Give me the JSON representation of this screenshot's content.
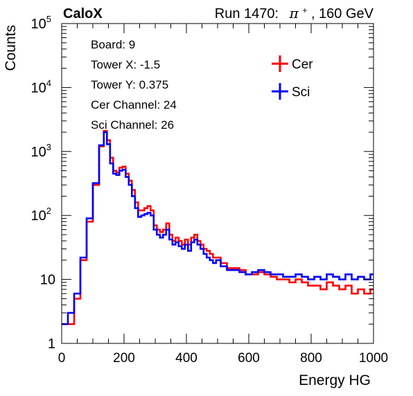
{
  "header": {
    "brand": "CaloX",
    "run_text": "Run 1470:",
    "beam_particle": "π",
    "beam_charge": "+",
    "beam_energy": ", 160 GeV"
  },
  "info_box": {
    "lines": [
      "Board: 9",
      "Tower X: -1.5",
      "Tower Y: 0.375",
      "Cer Channel: 24",
      "Sci Channel: 26"
    ]
  },
  "colors": {
    "cer": "#ff0000",
    "sci": "#0000ff",
    "frame": "#000000"
  },
  "chart_data": {
    "type": "line",
    "title": "",
    "xlabel": "Energy HG",
    "ylabel": "Counts",
    "xlim": [
      0,
      1000
    ],
    "ylim": [
      1,
      100000
    ],
    "yscale": "log",
    "drawstyle": "steps",
    "x_ticks": [
      0,
      200,
      400,
      600,
      800,
      1000
    ],
    "x_tick_labels": [
      "0",
      "200",
      "400",
      "600",
      "800",
      "1000"
    ],
    "y_ticks": [
      1,
      10,
      100,
      1000,
      10000,
      100000
    ],
    "y_tick_labels": [
      {
        "base": "1",
        "exp": ""
      },
      {
        "base": "10",
        "exp": ""
      },
      {
        "base": "10",
        "exp": "2"
      },
      {
        "base": "10",
        "exp": "3"
      },
      {
        "base": "10",
        "exp": "4"
      },
      {
        "base": "10",
        "exp": "5"
      }
    ],
    "legend_position": "top-right",
    "grid": false,
    "series": [
      {
        "name": "Cer",
        "color": "#ff0000",
        "x": [
          10,
          30,
          50,
          70,
          90,
          110,
          130,
          140,
          150,
          160,
          170,
          180,
          190,
          200,
          210,
          220,
          230,
          240,
          250,
          260,
          270,
          280,
          290,
          300,
          310,
          320,
          330,
          340,
          350,
          360,
          370,
          380,
          390,
          400,
          410,
          420,
          430,
          440,
          450,
          460,
          470,
          480,
          490,
          500,
          520,
          540,
          560,
          580,
          600,
          620,
          640,
          660,
          680,
          700,
          720,
          740,
          760,
          780,
          800,
          820,
          840,
          860,
          880,
          900,
          920,
          940,
          960,
          980,
          1000
        ],
        "y": [
          2,
          2,
          5,
          20,
          80,
          300,
          1200,
          2100,
          1500,
          800,
          500,
          470,
          560,
          580,
          450,
          350,
          250,
          160,
          120,
          120,
          130,
          140,
          120,
          70,
          60,
          55,
          60,
          75,
          50,
          40,
          45,
          40,
          35,
          42,
          35,
          45,
          50,
          40,
          35,
          30,
          28,
          25,
          22,
          22,
          18,
          15,
          15,
          14,
          12,
          12,
          13,
          12,
          11,
          10,
          10,
          9,
          10,
          9,
          8,
          8,
          7,
          9,
          8,
          7,
          8,
          6,
          7,
          6,
          7
        ]
      },
      {
        "name": "Sci",
        "color": "#0000ff",
        "x": [
          10,
          30,
          50,
          70,
          90,
          110,
          130,
          140,
          150,
          160,
          170,
          180,
          190,
          200,
          210,
          220,
          230,
          240,
          250,
          260,
          270,
          280,
          290,
          300,
          310,
          320,
          330,
          340,
          350,
          360,
          370,
          380,
          390,
          400,
          410,
          420,
          430,
          440,
          450,
          460,
          470,
          480,
          490,
          500,
          520,
          540,
          560,
          580,
          600,
          620,
          640,
          660,
          680,
          700,
          720,
          740,
          760,
          780,
          800,
          820,
          840,
          860,
          880,
          900,
          920,
          940,
          960,
          980,
          1000
        ],
        "y": [
          2,
          3,
          6,
          22,
          90,
          320,
          1250,
          2000,
          1300,
          650,
          450,
          430,
          500,
          520,
          400,
          300,
          200,
          130,
          95,
          100,
          105,
          110,
          100,
          60,
          50,
          45,
          50,
          60,
          42,
          35,
          38,
          33,
          30,
          35,
          28,
          38,
          42,
          35,
          30,
          25,
          22,
          20,
          18,
          20,
          16,
          14,
          14,
          13,
          12,
          13,
          14,
          13,
          12,
          12,
          11,
          11,
          12,
          11,
          10,
          11,
          10,
          12,
          11,
          10,
          12,
          10,
          11,
          10,
          12
        ]
      }
    ]
  }
}
